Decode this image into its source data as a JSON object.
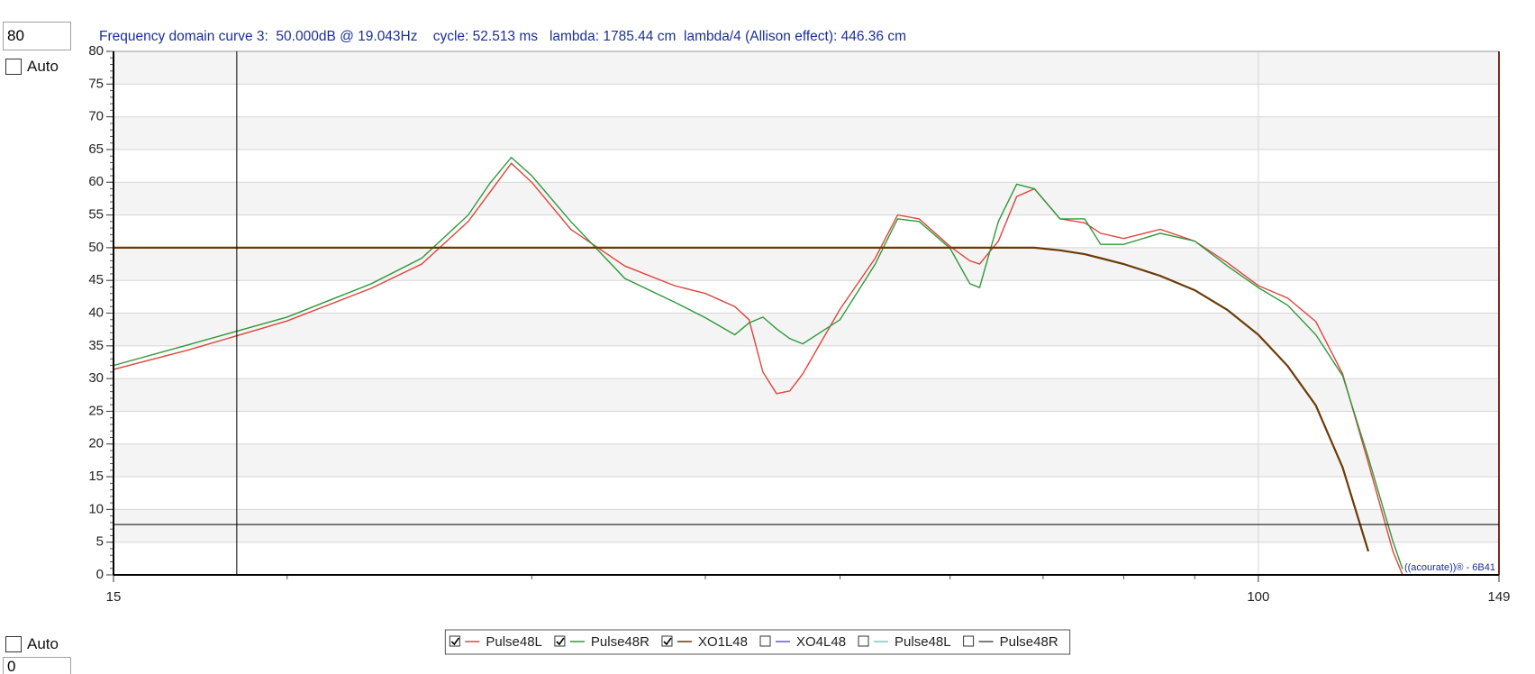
{
  "ui": {
    "ymax_input": "80",
    "ymax_auto_label": "Auto",
    "ymin_auto_label": "Auto",
    "ymin_input": "0",
    "watermark": "((acourate))® - 6B41"
  },
  "chart_data": {
    "type": "line",
    "title": "Frequency domain curve 3:  50.000dB @ 19.043Hz    cycle: 52.513 ms   lambda: 1785.44 cm  lambda/4 (Allison effect): 446.36 cm",
    "x": [
      15,
      17,
      20,
      23,
      25,
      27,
      28,
      29,
      30,
      32,
      35,
      38,
      40,
      42,
      43,
      44,
      45,
      46,
      47,
      50,
      53,
      55,
      57,
      60,
      62,
      63,
      65,
      67,
      69,
      72,
      75,
      77,
      80,
      85,
      90,
      95,
      100,
      105,
      110,
      115,
      120,
      125,
      127
    ],
    "series": [
      {
        "name": "Pulse48L",
        "color": "#e0443c",
        "checked": true,
        "values": [
          31.4,
          34.4,
          38.8,
          43.8,
          47.5,
          54,
          58.5,
          62.9,
          60,
          52.8,
          47.2,
          44.2,
          43,
          41,
          39,
          31,
          27.7,
          28.1,
          30.7,
          40.6,
          48.4,
          55,
          54.4,
          50.2,
          48,
          47.5,
          51,
          57.8,
          59,
          54.4,
          53.8,
          52.2,
          51.4,
          52.8,
          51,
          47.7,
          44.2,
          42.3,
          38.7,
          30.7,
          17.1,
          3.6,
          0
        ]
      },
      {
        "name": "Pulse48R",
        "color": "#2e9a3a",
        "checked": true,
        "values": [
          32,
          35.2,
          39.4,
          44.5,
          48.4,
          55,
          59.9,
          63.8,
          61,
          54,
          45.3,
          41.7,
          39.3,
          36.7,
          38.5,
          39.4,
          37.6,
          36.1,
          35.3,
          39,
          47.5,
          54.4,
          54,
          49.9,
          44.5,
          43.9,
          54,
          59.7,
          59,
          54.4,
          54.4,
          50.5,
          50.5,
          52.2,
          51,
          47.2,
          43.9,
          41.2,
          36.7,
          30.4,
          17.9,
          5.1,
          0.9
        ]
      },
      {
        "name": "XO1L48",
        "color": "#6b3a06",
        "checked": true,
        "values": [
          50,
          50,
          50,
          50,
          50,
          50,
          50,
          50,
          50,
          50,
          50,
          50,
          50,
          50,
          50,
          50,
          50,
          50,
          50,
          50,
          50,
          50,
          50,
          50,
          50,
          50,
          50,
          50,
          50,
          49.6,
          49,
          48.4,
          47.5,
          45.7,
          43.5,
          40.5,
          36.7,
          31.9,
          25.9,
          16.4,
          3.6,
          null,
          null
        ]
      },
      {
        "name": "XO4L48",
        "color": "#5a5ad8",
        "checked": false
      },
      {
        "name": "Pulse48L",
        "color": "#7fc9c0",
        "checked": false
      },
      {
        "name": "Pulse48R",
        "color": "#505050",
        "checked": false
      }
    ],
    "xlim": [
      15,
      149
    ],
    "xticks": [
      15,
      100,
      149
    ],
    "xminorticks": [
      20,
      30,
      40,
      50,
      60,
      70,
      80,
      90
    ],
    "xgrid": [
      100
    ],
    "xlog": true,
    "ylim": [
      0,
      80
    ],
    "yticks": [
      0,
      5,
      10,
      15,
      20,
      25,
      30,
      35,
      40,
      45,
      50,
      55,
      60,
      65,
      70,
      75,
      80
    ],
    "yminor_step": 1,
    "grid": true,
    "bands": true,
    "cursor": {
      "x": 18.4,
      "y": 7.7
    }
  }
}
